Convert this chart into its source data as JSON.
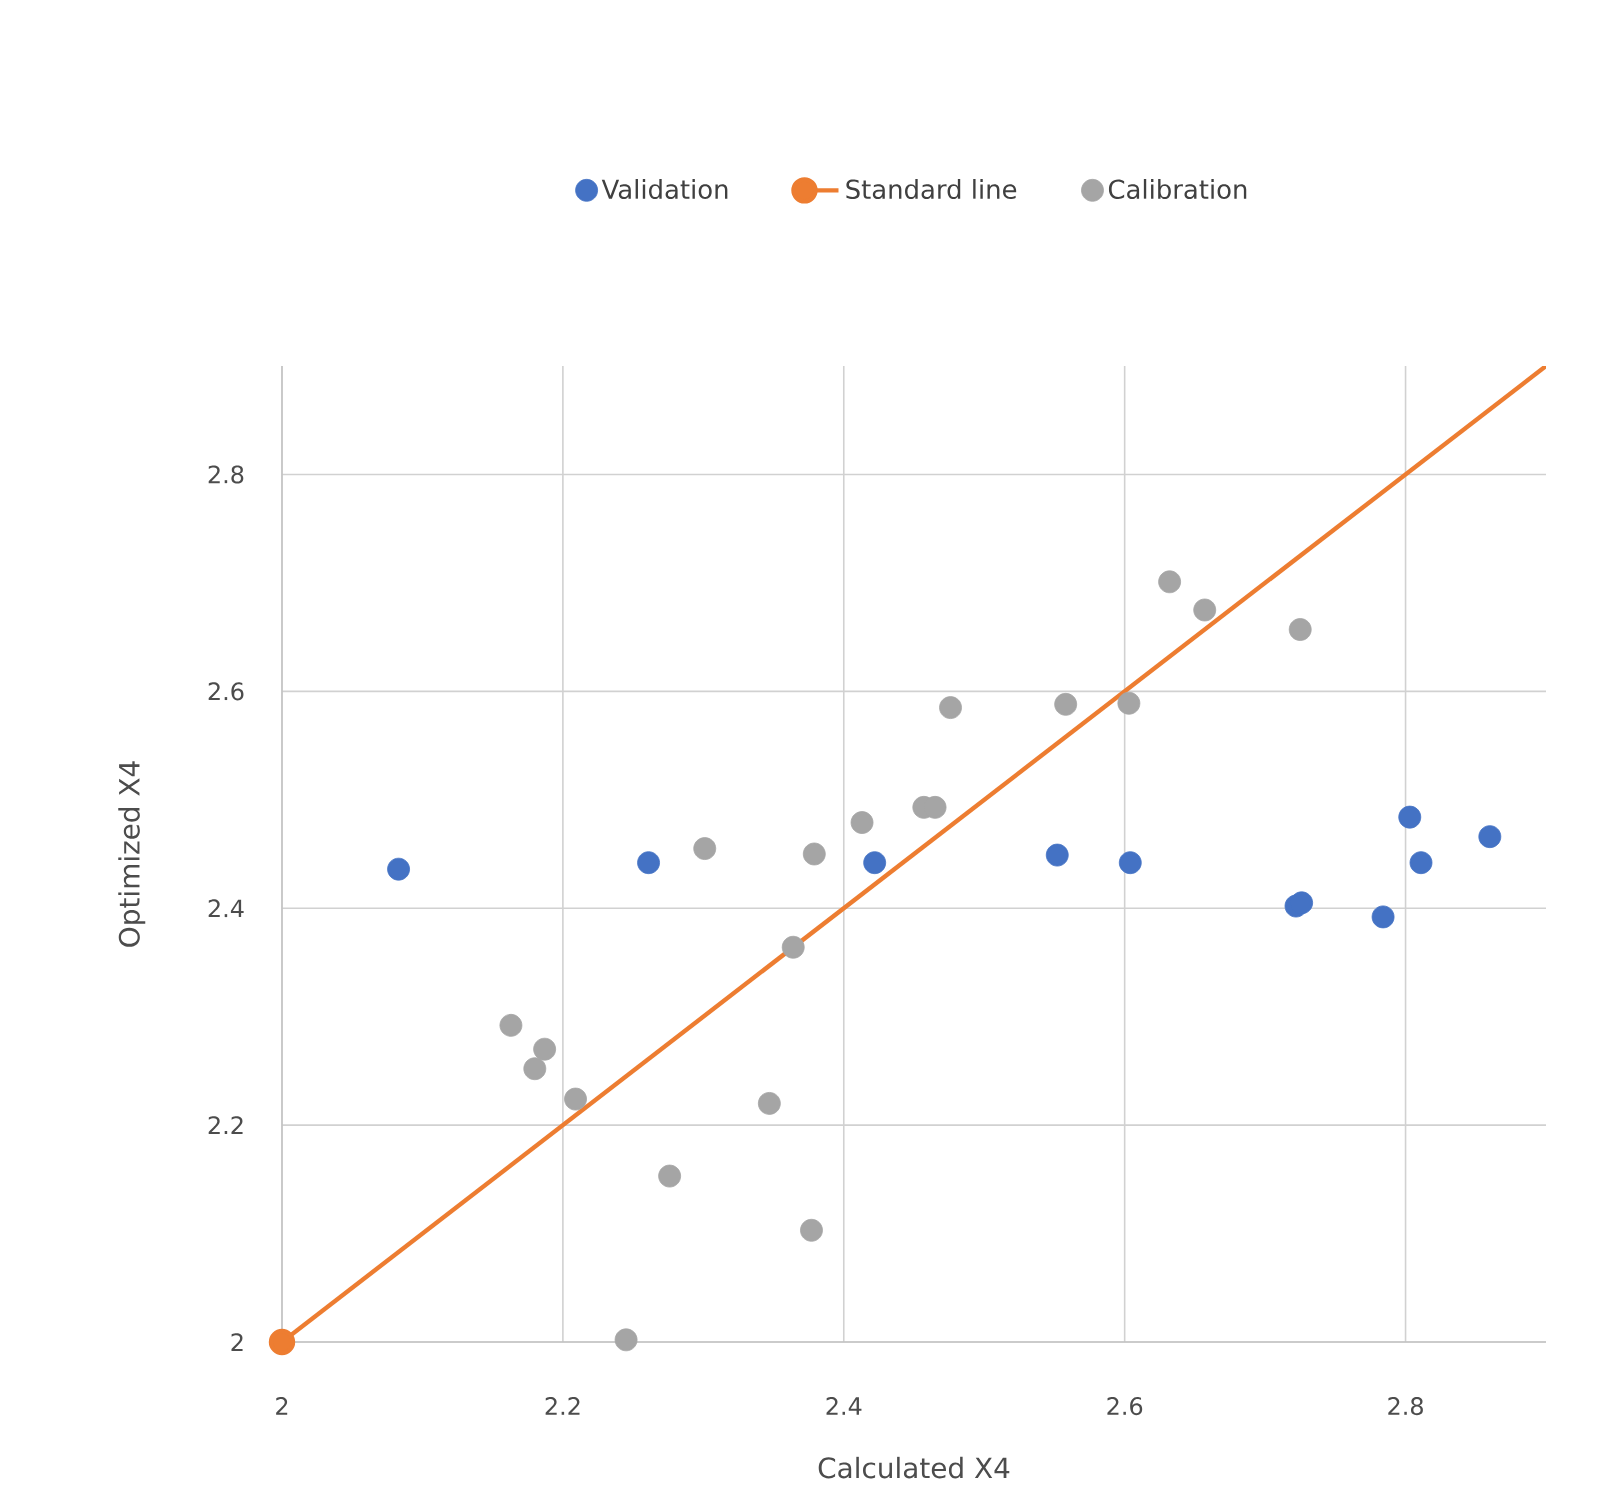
{
  "chart_data": {
    "type": "scatter",
    "xlabel": "Calculated X4",
    "ylabel": "Optimized X4",
    "xlim": [
      2,
      2.9
    ],
    "ylim": [
      2,
      2.9
    ],
    "xticks": [
      2,
      2.2,
      2.4,
      2.6,
      2.8
    ],
    "yticks": [
      2,
      2.2,
      2.4,
      2.6,
      2.8
    ],
    "grid": true,
    "legend": "top",
    "marker": "circle",
    "series": [
      {
        "name": "Validation",
        "color": "#4472c4",
        "x": [
          2.083,
          2.261,
          2.422,
          2.552,
          2.604,
          2.722,
          2.726,
          2.784,
          2.803,
          2.811,
          2.86
        ],
        "values": [
          2.436,
          2.442,
          2.442,
          2.449,
          2.442,
          2.402,
          2.405,
          2.392,
          2.484,
          2.442,
          2.466
        ]
      },
      {
        "name": "Standard line",
        "type": "line",
        "color": "#ed7d31",
        "x": [
          2,
          2.9
        ],
        "values": [
          2,
          2.9
        ]
      },
      {
        "name": "Calibration",
        "color": "#a5a5a5",
        "x": [
          2.632,
          2.657,
          2.725,
          2.476,
          2.558,
          2.603,
          2.413,
          2.457,
          2.465,
          2.301,
          2.379,
          2.364,
          2.163,
          2.187,
          2.18,
          2.209,
          2.347,
          2.276,
          2.377,
          2.245
        ],
        "values": [
          2.701,
          2.675,
          2.657,
          2.585,
          2.588,
          2.589,
          2.479,
          2.493,
          2.493,
          2.455,
          2.45,
          2.364,
          2.292,
          2.27,
          2.252,
          2.224,
          2.22,
          2.153,
          2.103,
          2.002
        ]
      }
    ]
  }
}
